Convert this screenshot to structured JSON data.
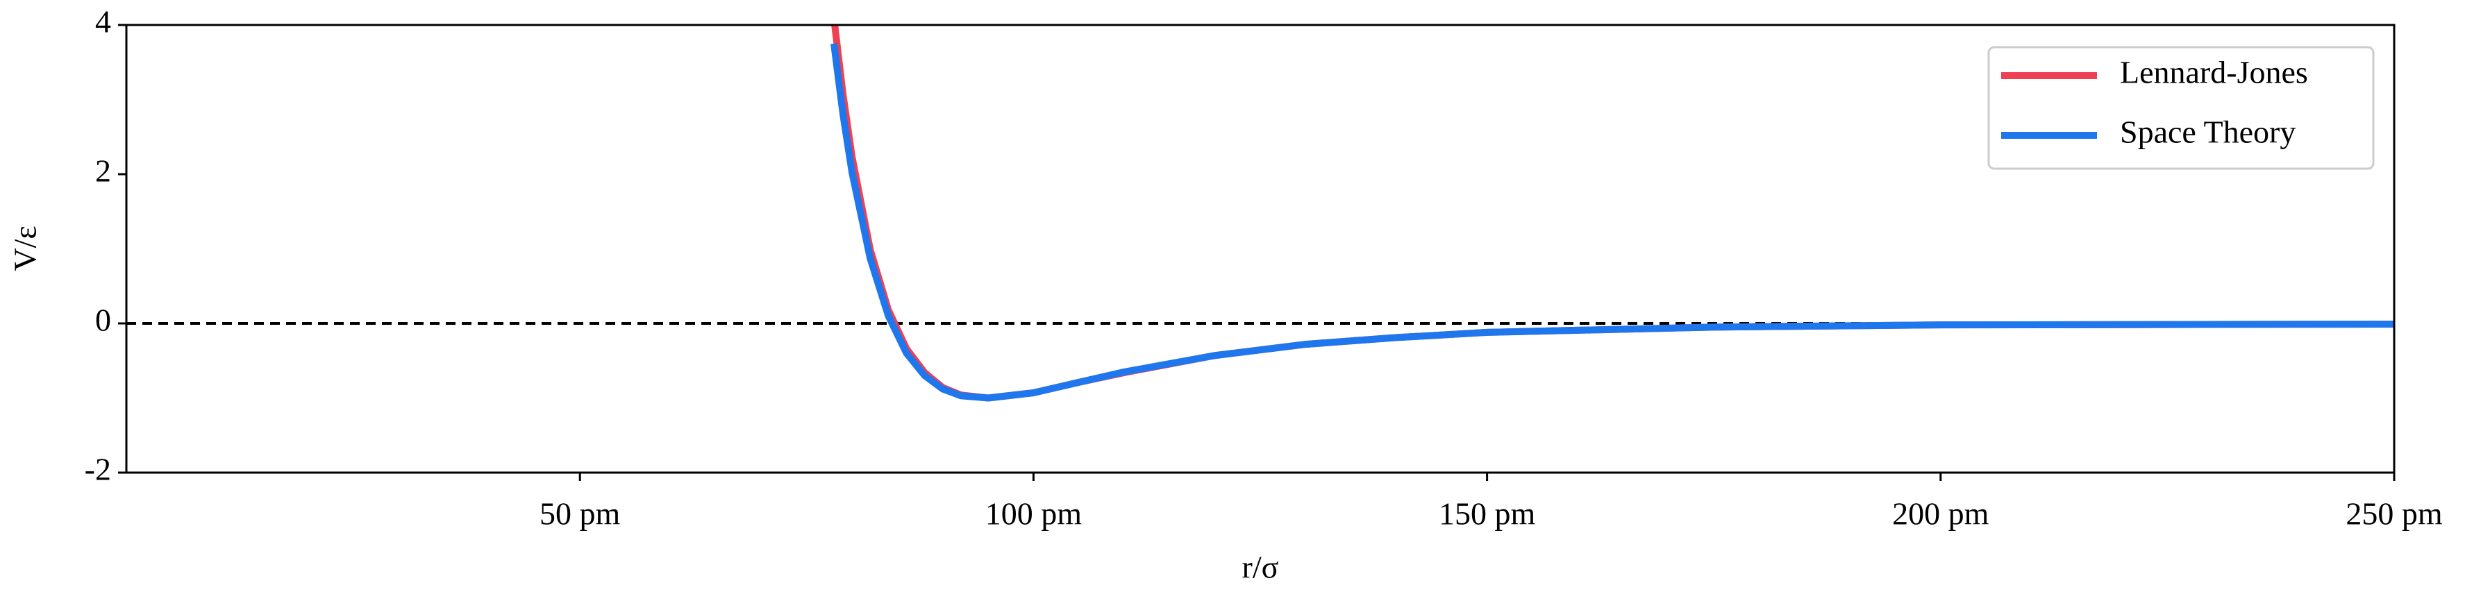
{
  "chart_data": {
    "type": "line",
    "xlabel": "r/σ",
    "ylabel": "V/ε",
    "x": [
      78,
      79,
      80,
      82,
      84,
      86,
      88,
      90,
      92,
      95,
      100,
      105,
      110,
      120,
      130,
      140,
      150,
      175,
      200,
      250
    ],
    "series": [
      {
        "name": "Lennard-Jones",
        "color": "#ef4152",
        "values": [
          4.09,
          3.07,
          2.23,
          0.99,
          0.18,
          -0.34,
          -0.66,
          -0.86,
          -0.96,
          -1.0,
          -0.93,
          -0.79,
          -0.66,
          -0.43,
          -0.28,
          -0.19,
          -0.12,
          -0.05,
          -0.02,
          -0.01
        ]
      },
      {
        "name": "Space Theory",
        "color": "#1f77ee",
        "values": [
          3.75,
          2.8,
          2.02,
          0.87,
          0.1,
          -0.4,
          -0.7,
          -0.88,
          -0.97,
          -1.0,
          -0.93,
          -0.79,
          -0.65,
          -0.43,
          -0.28,
          -0.19,
          -0.12,
          -0.05,
          -0.02,
          -0.01
        ]
      }
    ],
    "xlim": [
      0,
      250
    ],
    "xticks": [
      {
        "value": 50,
        "label": "50 pm"
      },
      {
        "value": 100,
        "label": "100 pm"
      },
      {
        "value": 150,
        "label": "150 pm"
      },
      {
        "value": 200,
        "label": "200 pm"
      },
      {
        "value": 250,
        "label": "250 pm"
      }
    ],
    "ylim": [
      -2,
      4
    ],
    "yticks": [
      -2,
      0,
      2,
      4
    ],
    "hline": 0,
    "legend": "upper right",
    "grid": false
  }
}
